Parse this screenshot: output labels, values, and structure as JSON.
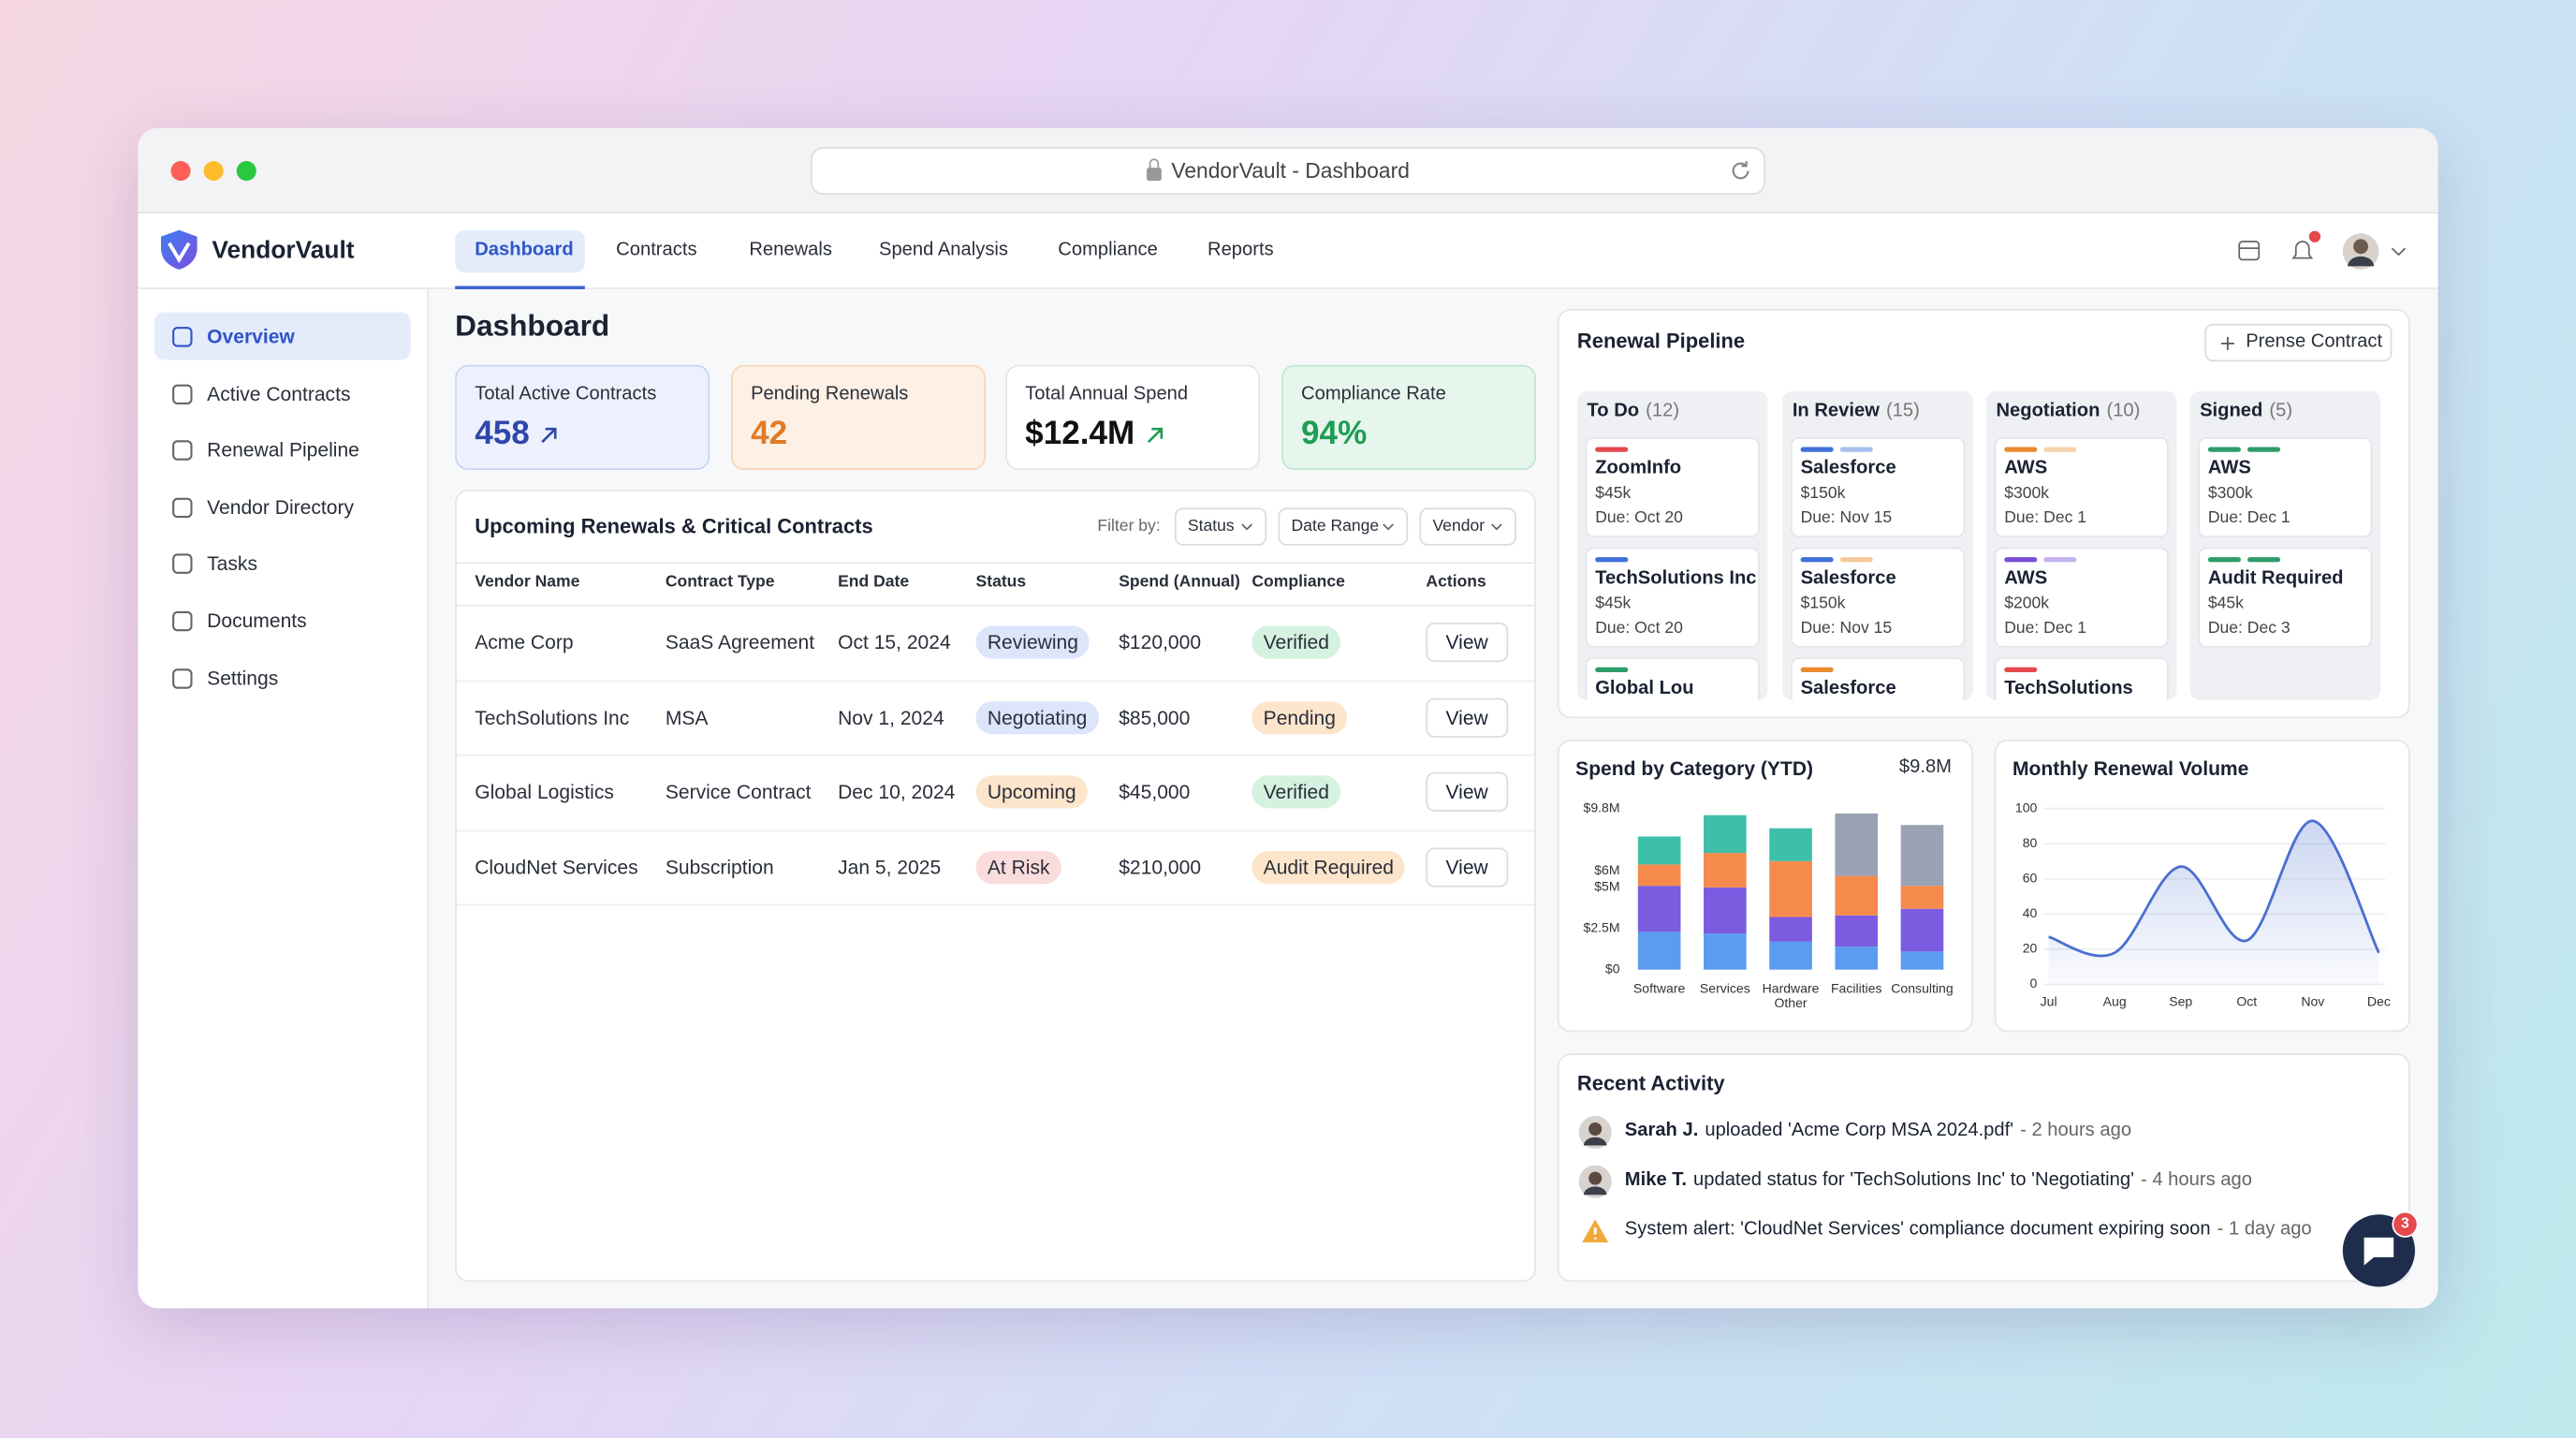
{
  "browser": {
    "title": "VendorVault - Dashboard"
  },
  "brand": "VendorVault",
  "nav": [
    "Dashboard",
    "Contracts",
    "Renewals",
    "Spend Analysis",
    "Compliance",
    "Reports"
  ],
  "sidebar": [
    "Overview",
    "Active Contracts",
    "Renewal Pipeline",
    "Vendor Directory",
    "Tasks",
    "Documents",
    "Settings"
  ],
  "page_title": "Dashboard",
  "kpis": [
    {
      "label": "Total Active Contracts",
      "value": "458",
      "color": "#2f47a8",
      "bg": "#edf1fd",
      "border": "#c8d5f4"
    },
    {
      "label": "Pending Renewals",
      "value": "42",
      "color": "#e07b28",
      "bg": "#fdf0e4",
      "border": "#f6d6b8"
    },
    {
      "label": "Total Annual Spend",
      "value": "$12.4M",
      "color": "#111111",
      "bg": "#ffffff",
      "border": "#e3e5ea"
    },
    {
      "label": "Compliance Rate",
      "value": "94%",
      "color": "#1f9d55",
      "bg": "#e7f6ed",
      "border": "#bfe6cf"
    }
  ],
  "table": {
    "title": "Upcoming Renewals & Critical Contracts",
    "filter_label": "Filter by:",
    "filters": [
      "Status",
      "Date Range",
      "Vendor"
    ],
    "columns": [
      "Vendor Name",
      "Contract Type",
      "End Date",
      "Status",
      "Spend (Annual)",
      "Compliance",
      "Actions"
    ],
    "rows": [
      {
        "cells": [
          "Acme Corp",
          "SaaS Agreement",
          "Oct 15, 2024",
          "Reviewing",
          "$120,000",
          "Verified",
          "View"
        ],
        "status_color": "#dde5fb",
        "compliance_color": "#d5f1df"
      },
      {
        "cells": [
          "TechSolutions Inc",
          "MSA",
          "Nov 1, 2024",
          "Negotiating",
          "$85,000",
          "Pending",
          "View"
        ],
        "status_color": "#dde5fb",
        "compliance_color": "#fde5cc"
      },
      {
        "cells": [
          "Global Logistics",
          "Service Contract",
          "Dec 10, 2024",
          "Upcoming",
          "$45,000",
          "Verified",
          "View"
        ],
        "status_color": "#fde5cc",
        "compliance_color": "#d5f1df"
      },
      {
        "cells": [
          "CloudNet Services",
          "Subscription",
          "Jan 5, 2025",
          "At Risk",
          "$210,000",
          "Audit Required",
          "View"
        ],
        "status_color": "#fbdcdc",
        "compliance_color": "#fde5cc"
      }
    ]
  },
  "pipeline": {
    "title": "Renewal Pipeline",
    "button": "Prense Contract",
    "columns": [
      {
        "title": "To Do",
        "count": "(12)",
        "cards": [
          {
            "name": "ZoomInfo",
            "amount": "$45k",
            "due": "Due: Oct 20",
            "colors": [
              "#e5484d"
            ]
          },
          {
            "name": "TechSolutions Inc",
            "amount": "$45k",
            "due": "Due: Oct 20",
            "colors": [
              "#3f6fd8"
            ]
          },
          {
            "name": "Global Lou",
            "colors": [
              "#2e9d6a"
            ]
          }
        ]
      },
      {
        "title": "In Review",
        "count": "(15)",
        "cards": [
          {
            "name": "Salesforce",
            "amount": "$150k",
            "due": "Due: Nov 15",
            "colors": [
              "#3f6fd8",
              "#a9bff0"
            ]
          },
          {
            "name": "Salesforce",
            "amount": "$150k",
            "due": "Due: Nov 15",
            "colors": [
              "#3f6fd8",
              "#f6c99a"
            ]
          },
          {
            "name": "Salesforce",
            "colors": [
              "#ea8a2f"
            ]
          }
        ]
      },
      {
        "title": "Negotiation",
        "count": "(10)",
        "cards": [
          {
            "name": "AWS",
            "amount": "$300k",
            "due": "Due: Dec 1",
            "colors": [
              "#ea8a2f",
              "#f6d2ab"
            ]
          },
          {
            "name": "AWS",
            "amount": "$200k",
            "due": "Due: Dec 1",
            "colors": [
              "#7a4fd6",
              "#c3b2ee"
            ]
          },
          {
            "name": "TechSolutions",
            "colors": [
              "#e5484d"
            ]
          }
        ]
      },
      {
        "title": "Signed",
        "count": "(5)",
        "cards": [
          {
            "name": "AWS",
            "amount": "$300k",
            "due": "Due: Dec 1",
            "colors": [
              "#2e9d6a",
              "#2e9d6a"
            ]
          },
          {
            "name": "Audit Required",
            "amount": "$45k",
            "due": "Due: Dec 3",
            "colors": [
              "#2e9d6a",
              "#2e9d6a"
            ]
          }
        ]
      }
    ]
  },
  "activity": {
    "title": "Recent Activity",
    "items": [
      {
        "actor": "Sarah J.",
        "text": "uploaded 'Acme Corp MSA 2024.pdf'",
        "time": "- 2 hours ago"
      },
      {
        "actor": "Mike T.",
        "text": "updated status for 'TechSolutions Inc' to 'Negotiating'",
        "time": "- 4 hours ago"
      },
      {
        "text": "System alert: 'CloudNet Services' compliance document expiring soon",
        "time": "- 1 day ago"
      }
    ]
  },
  "chat_badge": "3",
  "chart_data": [
    {
      "type": "bar",
      "stacked": true,
      "title": "Spend by Category (YTD)",
      "total": "$9.8M",
      "categories": [
        "Software",
        "Services",
        "Hardware Other",
        "Facilities",
        "Consulting"
      ],
      "series": [
        {
          "color": "#5b9cf0",
          "values": [
            2.3,
            2.2,
            1.7,
            1.4,
            1.1
          ]
        },
        {
          "color": "#7b5be0",
          "values": [
            2.8,
            2.8,
            1.5,
            1.9,
            2.6
          ]
        },
        {
          "color": "#f58a4c",
          "values": [
            1.3,
            2.1,
            3.4,
            2.4,
            1.4
          ]
        },
        {
          "color": "#3dbfa8",
          "values": [
            1.7,
            2.3,
            2.0,
            null,
            null
          ]
        },
        {
          "color": "#9aa1b3",
          "values": [
            null,
            null,
            null,
            3.8,
            3.7
          ]
        }
      ],
      "ylim": [
        0,
        9.8
      ],
      "yticks": [
        {
          "value": 0,
          "label": "$0"
        },
        {
          "value": 2.5,
          "label": "$2.5M"
        },
        {
          "value": 5,
          "label": "$5M"
        },
        {
          "value": 6,
          "label": "$6M"
        },
        {
          "value": 9.8,
          "label": "$9.8M"
        }
      ]
    },
    {
      "type": "line",
      "title": "Monthly Renewal Volume",
      "categories": [
        "Jul",
        "Aug",
        "Sep",
        "Oct",
        "Nov",
        "Dec"
      ],
      "values": [
        27,
        18,
        67,
        25,
        93,
        18
      ],
      "color": "#4a6fd1",
      "ylim": [
        0,
        100
      ],
      "yticks": [
        0,
        20,
        40,
        60,
        80,
        100
      ],
      "grid": true
    }
  ]
}
